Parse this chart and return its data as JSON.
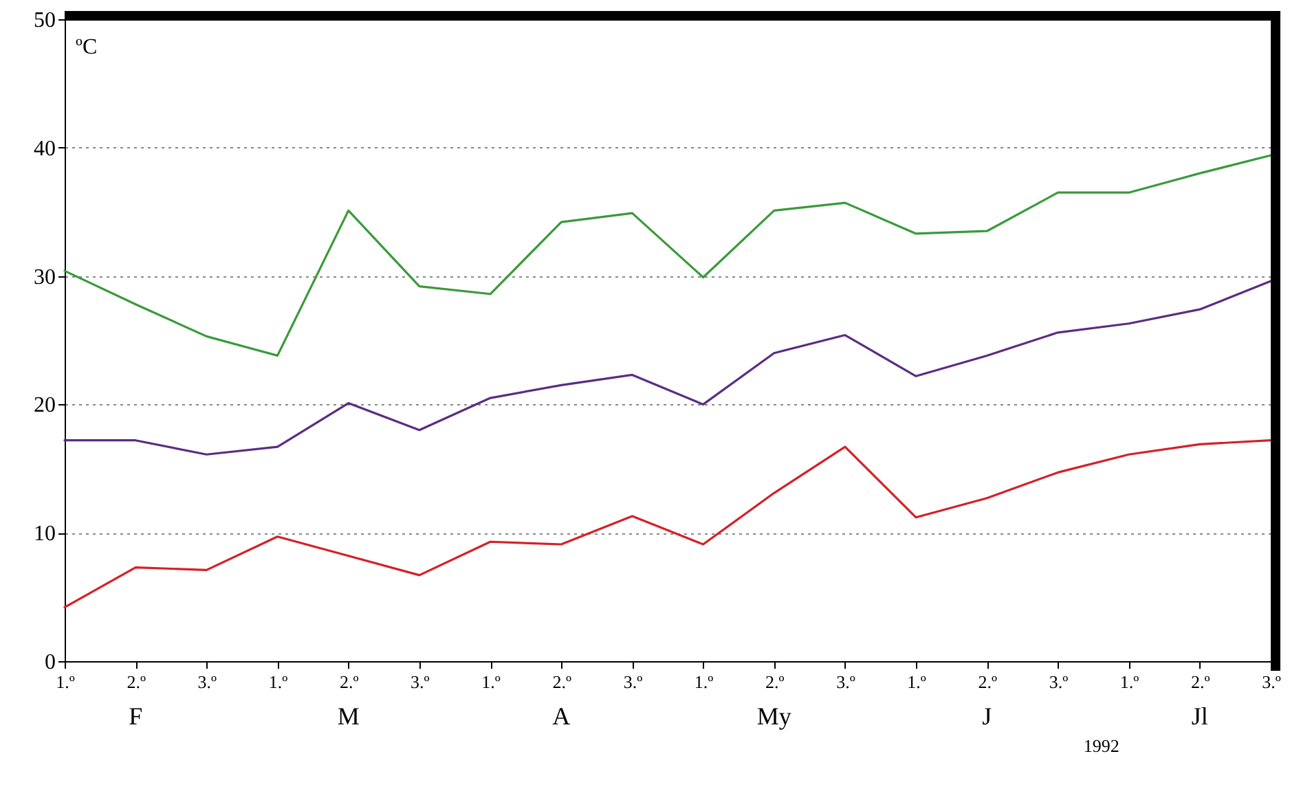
{
  "chart_data": {
    "type": "line",
    "ylabel": "ºC",
    "categories": [
      "1.º",
      "2.º",
      "3.º",
      "1.º",
      "2.º",
      "3.º",
      "1.º",
      "2.º",
      "3.º",
      "1.º",
      "2.º",
      "3.º",
      "1.º",
      "2.º",
      "3.º",
      "1.º",
      "2.º",
      "3.º"
    ],
    "series": [
      {
        "color": "#3a9a3a",
        "values": [
          30.4,
          27.8,
          25.3,
          23.8,
          35.1,
          29.2,
          28.6,
          34.2,
          34.9,
          29.9,
          35.1,
          35.7,
          33.3,
          33.5,
          36.5,
          36.5,
          38.0,
          39.4
        ]
      },
      {
        "color": "#5b2d82",
        "values": [
          17.2,
          17.2,
          16.1,
          16.7,
          20.1,
          18.0,
          20.5,
          21.5,
          22.3,
          20.0,
          24.0,
          25.4,
          22.2,
          23.8,
          25.6,
          26.3,
          27.4,
          29.6
        ]
      },
      {
        "color": "#d42027",
        "values": [
          4.2,
          7.3,
          7.1,
          9.7,
          8.2,
          6.7,
          9.3,
          9.1,
          11.3,
          9.1,
          13.1,
          16.7,
          11.2,
          12.7,
          14.7,
          16.1,
          16.9,
          17.2
        ]
      }
    ],
    "ylim": [
      0,
      50
    ],
    "yticks": [
      0,
      10,
      20,
      30,
      40,
      50
    ],
    "grid": "y",
    "marker": "none",
    "line_style": "solid",
    "annotations": [
      "F",
      "M",
      "A",
      "My",
      "J",
      "Jl",
      "1992"
    ]
  }
}
